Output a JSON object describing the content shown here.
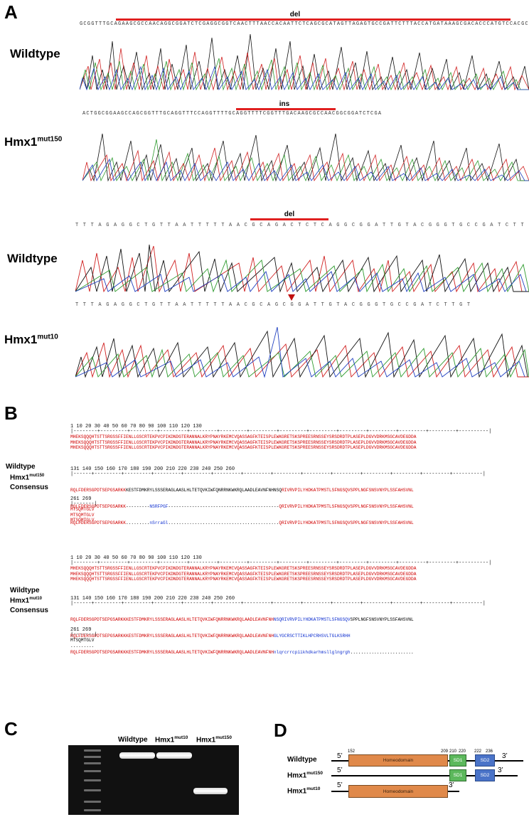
{
  "panelA": {
    "letter": "A",
    "block1": {
      "del_label": "del",
      "wt_label": "Wildtype",
      "mut_label_main": "Hmx1",
      "mut_label_sup": "mut150",
      "ins_label": "ins"
    },
    "block2": {
      "del_label": "del",
      "wt_label": "Wildtype",
      "mut_label_main": "Hmx1",
      "mut_label_sup": "mut10",
      "seq_top": "T T T A G A G G C T G T T A A T T T T T A A C G C A G A C T C T C A G G C G G A T T G T A C G G G T G C C G A T C T T G T",
      "seq_bottom": "T T T A G A G G C T G T T A A T T T T T A A C G C A G C G G A T T G T A C G G G T G C C G A T C T T G T"
    },
    "colors": {
      "red_bar": "#e02020",
      "trace_a": "#2e9b2e",
      "trace_c": "#2040c0",
      "trace_g": "#111111",
      "trace_t": "#d02020"
    }
  },
  "panelB": {
    "letter": "B",
    "ruler1": "1        10        20        30        40        50        60        70        80        90       100       110       120       130",
    "ruler2": "131     140       150       160       170       180       190       200       210       220       230       240       250       260",
    "ruler3": "261   269",
    "aln1": {
      "wt_label": "Wildtype",
      "mut_main": "Hmx1",
      "mut_sup": "mut150",
      "cons_label": "Consensus",
      "r1a": "MHEKSQQQHTSTTSRGSSFFIENLLGSCRTEKPVCPIKDNDGTERANNALKRYPNAYRKEMCVQASSAGFKTEISPLEWKGRETSKSPREESRNSSEYSRSDRDTPLASEPLDGVVDRKMSGCAVDEGDDA",
      "r1b": "MHEKSQQQHTSTTSRGSSFFIENLLGSCRTEKPVCPIKDNDGTERANNALKRYPNAYRKEMCVQASSAGFKTEISPLEWKGRETSKSPREESRNSSEYSRSDRDTPLASEPLDGVVDRKMSGCAVDEGDDA",
      "r1c": "MHEKSQQQHTSTTSRGSSFFIENLLGSCRTEKPVCPIKDNDGTERANNALKRYPNAYRKEMCVQASSAGFKTEISPLEWKGRETSKSPREESRNSSEYSRSDRDTPLASEPLDGVVDRKMSGCAVDEGDDA",
      "r2a_red": "RQLFDERSGPDTSEPGSARKK",
      "r2a_black": "KESTFDMKRYLSSSERAGLAASLHLTETQVKIWFQNRRNKWKRQLAADLEAVNFNHNSQ",
      "r2a_red2": "RIVRVPILYHDKATPMSTLSFNGSQVSPPLNGFSNSVNYPLSSFAHSVNL",
      "r2b_red": "RQLFDERSGPDTSEPGSARKK",
      "r2b_dash1": "---------",
      "r2b_blue": "NSRFPGF",
      "r2b_dash2": "------------------------------------------",
      "r2b_red2": "QRIVRVPILYHDKATPMSTLSFNGSQVSPPLNGFSNSVNYPLSSFAHSVNL",
      "r2c_red": "RQLFDERSGPDTSEPGSARKK",
      "r2c_dots1": ".........",
      "r2c_blue": "nSrraGl",
      "r2c_dots2": "..........................................",
      "r2c_red2": "QRIVRVPILYHDKATPMSTLSFNGSQVSPPLNGFSNSVNYPLSSFAHSVNL",
      "r3a": "MTSQMTGLV",
      "r3b": "MTSQMTGLV",
      "r3c": "MTSQMTGLV"
    },
    "aln2": {
      "wt_label": "Wildtype",
      "mut_main": "Hmx1",
      "mut_sup": "mut10",
      "cons_label": "Consensus",
      "r1a": "MHEKSQQQHTSTTSRGSSFFIENLLGSCRTEKPVCPIKDNDGTERANNALKRYPNAYRKEMCVQASSAGFKTEISPLEWKGRETSKSPREESRNSSEYSRSDRDTPLASEPLDGVVDRKMSGCAVDEGDDA",
      "r1b": "MHEKSQQQHTSTTSRGSSFFIENLLGSCRTEKPVCPIKDNDGTERANNALKRYPNAYRKEMCVQASSAGFKTEISPLEWKGRETSKSPREESRNSSEYSRSDRDTPLASEPLDGVVDRKMSGCAVDEGDDA",
      "r1c": "MHEKSQQQHTSTTSRGSSFFIENLLGSCRTEKPVCPIKDNDGTERANNALKRYPNAYRKEMCVQASSAGFKTEISPLEWKGRETSKSPREESRNSSEYSRSDRDTPLASEPLDGVVDRKMSGCAVDEGDDA",
      "r2a_red": "RQLFDERSGPDTSEPGSARKKKESTFDMKRYLSSSERAGLAASLHLTETQVKIWFQNRRNKWKRQLAADLEAVNFNH",
      "r2a_blue": "NSQRIVRVPILYHDKATPMSTLSFNGSQV",
      "r2a_black": "SPPLNGFSNSVNYPLSSFAHSVNL",
      "r2b_red": "RQLFDERSGPDTSEPGSARKKKESTFDMKRYLSSSERAGLAASLHLTETQVKIWFQNRRNKWKRQLAADLEAVNFNH",
      "r2b_blue": "GLYGCRSCTTIKLHPCRHSVLTGLKSRHH",
      "r2c_red": "RQLFDERSGPDTSEPGSARKKKESTFDMKRYLSSSERAGLAASLHLTETQVKIWFQNRRNKWKRQLAADLEAVNFNH",
      "r2c_blue": "nlqrcrrcpiikhdkarhmsllglngrgh",
      "r2c_dots": "........................",
      "r3a": "MTSQMTGLV",
      "r3b": "",
      "r3c": "........."
    }
  },
  "panelC": {
    "letter": "C",
    "lane1": "Wildtype",
    "lane2_main": "Hmx1",
    "lane2_sup": "mut10",
    "lane3_main": "Hmx1",
    "lane3_sup": "mut150"
  },
  "panelD": {
    "letter": "D",
    "row1": "Wildtype",
    "row2_main": "Hmx1",
    "row2_sup": "mut150",
    "row3_main": "Hmx1",
    "row3_sup": "mut10",
    "five": "5’",
    "three": "3’",
    "homeodomain": "Homeodomain",
    "sd1": "SD1",
    "sd2": "SD2",
    "n152": "152",
    "n209": "209",
    "n210": "210",
    "n220": "220",
    "n222": "222",
    "n236": "236"
  }
}
